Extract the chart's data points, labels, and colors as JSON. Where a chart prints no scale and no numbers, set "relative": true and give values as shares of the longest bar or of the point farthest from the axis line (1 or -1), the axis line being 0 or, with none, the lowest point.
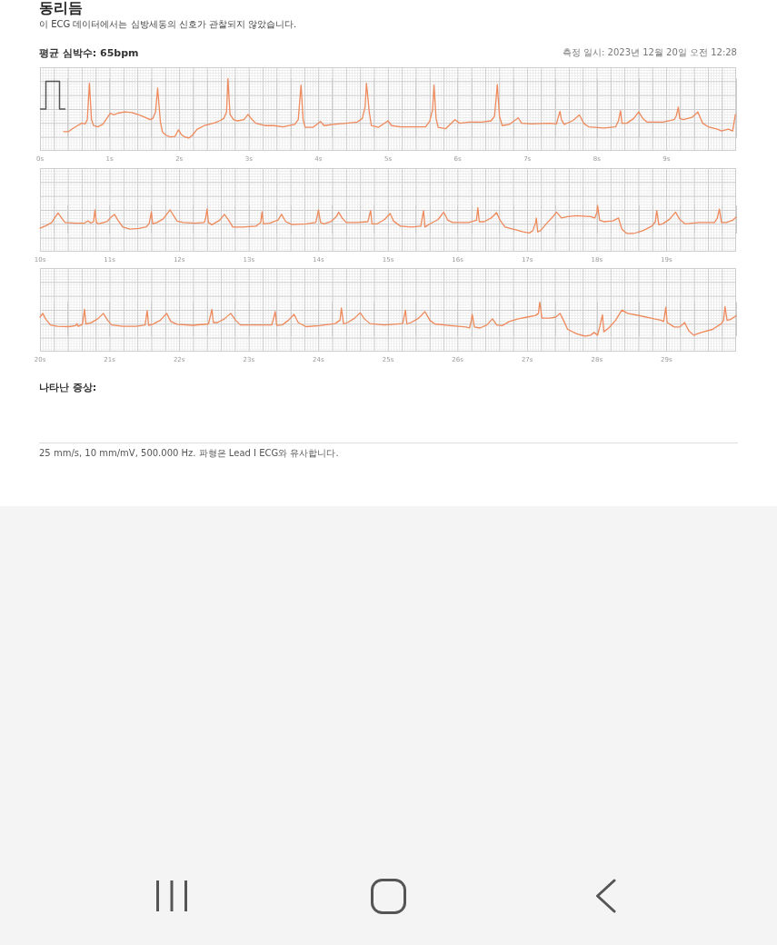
{
  "chart_data": [
    {
      "type": "line",
      "title": "동리듬",
      "subtitle": "이 ECG 데이터에서는 심방세동의 신호가 관찰되지 않았습니다.",
      "annotations": [
        "평균 심박수: 65bpm",
        "측정 일시: 2023년 12월 20일 오전 12:28"
      ],
      "relative": true,
      "color": "#ee8a5c",
      "marker": "none",
      "line_style": "solid",
      "grid": true,
      "xlim": [
        0,
        10
      ],
      "xticks": [
        {
          "value": 0,
          "label": "0s"
        },
        {
          "value": 1,
          "label": "1s"
        },
        {
          "value": 2,
          "label": "2s"
        },
        {
          "value": 3,
          "label": "3s"
        },
        {
          "value": 4,
          "label": "4s"
        },
        {
          "value": 5,
          "label": "5s"
        },
        {
          "value": 6,
          "label": "6s"
        },
        {
          "value": 7,
          "label": "7s"
        },
        {
          "value": 8,
          "label": "8s"
        },
        {
          "value": 9,
          "label": "9s"
        }
      ],
      "x": [
        0.34,
        0.41,
        0.47,
        0.54,
        0.6,
        0.65,
        0.68,
        0.71,
        0.74,
        0.77,
        0.83,
        0.9,
        0.96,
        1.01,
        1.06,
        1.12,
        1.22,
        1.32,
        1.42,
        1.51,
        1.58,
        1.62,
        1.66,
        1.69,
        1.73,
        1.76,
        1.81,
        1.87,
        1.94,
        1.99,
        2.03,
        2.08,
        2.14,
        2.19,
        2.26,
        2.36,
        2.45,
        2.52,
        2.58,
        2.64,
        2.68,
        2.7,
        2.73,
        2.78,
        2.84,
        2.93,
        2.99,
        3.04,
        3.1,
        3.23,
        3.36,
        3.49,
        3.66,
        3.71,
        3.75,
        3.78,
        3.81,
        3.92,
        4.03,
        4.08,
        4.21,
        4.4,
        4.56,
        4.63,
        4.67,
        4.69,
        4.73,
        4.76,
        4.86,
        5,
        5.05,
        5.18,
        5.38,
        5.54,
        5.6,
        5.64,
        5.66,
        5.69,
        5.72,
        5.83,
        5.96,
        6.03,
        6.16,
        6.35,
        6.48,
        6.53,
        6.57,
        6.6,
        6.64,
        6.74,
        6.87,
        6.92,
        7.06,
        7.32,
        7.42,
        7.44,
        7.47,
        7.49,
        7.53,
        7.65,
        7.75,
        7.81,
        7.88,
        8.1,
        8.27,
        8.31,
        8.34,
        8.36,
        8.43,
        8.53,
        8.6,
        8.66,
        8.72,
        8.95,
        9.11,
        9.14,
        9.17,
        9.19,
        9.24,
        9.37,
        9.45,
        9.52,
        9.6,
        9.73,
        9.79,
        9.89,
        9.95,
        9.99
      ],
      "values": [
        0.11,
        0.11,
        0.16,
        0.21,
        0.25,
        0.24,
        0.31,
        0.92,
        0.31,
        0.21,
        0.19,
        0.23,
        0.33,
        0.42,
        0.39,
        0.42,
        0.44,
        0.43,
        0.39,
        0.35,
        0.31,
        0.33,
        0.44,
        0.84,
        0.27,
        0.1,
        0.05,
        0.02,
        0.03,
        0.14,
        0.06,
        0.02,
        0,
        0.05,
        0.15,
        0.21,
        0.24,
        0.26,
        0.29,
        0.33,
        0.44,
        1,
        0.4,
        0.31,
        0.29,
        0.31,
        0.4,
        0.32,
        0.25,
        0.21,
        0.21,
        0.19,
        0.23,
        0.31,
        0.89,
        0.31,
        0.18,
        0.18,
        0.28,
        0.21,
        0.23,
        0.25,
        0.27,
        0.33,
        0.52,
        0.92,
        0.44,
        0.21,
        0.18,
        0.29,
        0.21,
        0.19,
        0.19,
        0.19,
        0.29,
        0.48,
        0.89,
        0.33,
        0.18,
        0.16,
        0.31,
        0.25,
        0.27,
        0.27,
        0.29,
        0.37,
        0.9,
        0.37,
        0.21,
        0.23,
        0.34,
        0.25,
        0.24,
        0.25,
        0.24,
        0.33,
        0.45,
        0.31,
        0.23,
        0.29,
        0.39,
        0.25,
        0.19,
        0.17,
        0.19,
        0.29,
        0.46,
        0.25,
        0.25,
        0.33,
        0.44,
        0.33,
        0.27,
        0.27,
        0.31,
        0.37,
        0.52,
        0.33,
        0.31,
        0.35,
        0.44,
        0.25,
        0.19,
        0.15,
        0.12,
        0.15,
        0.12,
        0.4
      ]
    },
    {
      "type": "line",
      "relative": true,
      "color": "#ee8a5c",
      "marker": "none",
      "line_style": "solid",
      "grid": true,
      "xlim": [
        10,
        20
      ],
      "xticks": [
        {
          "value": 10,
          "label": "10s"
        },
        {
          "value": 11,
          "label": "11s"
        },
        {
          "value": 12,
          "label": "12s"
        },
        {
          "value": 13,
          "label": "13s"
        },
        {
          "value": 14,
          "label": "14s"
        },
        {
          "value": 15,
          "label": "15s"
        },
        {
          "value": 16,
          "label": "16s"
        },
        {
          "value": 17,
          "label": "17s"
        },
        {
          "value": 18,
          "label": "18s"
        },
        {
          "value": 19,
          "label": "19s"
        }
      ],
      "x": [
        10,
        10.08,
        10.17,
        10.21,
        10.26,
        10.31,
        10.36,
        10.51,
        10.64,
        10.69,
        10.73,
        10.77,
        10.79,
        10.81,
        10.84,
        10.96,
        11.03,
        11.07,
        11.12,
        11.19,
        11.29,
        11.42,
        11.53,
        11.57,
        11.6,
        11.62,
        11.68,
        11.77,
        11.87,
        11.92,
        11.97,
        12.06,
        12.23,
        12.36,
        12.38,
        12.4,
        12.42,
        12.47,
        12.58,
        12.65,
        12.71,
        12.77,
        12.91,
        13.1,
        13.17,
        13.19,
        13.21,
        13.3,
        13.42,
        13.47,
        13.53,
        13.62,
        13.82,
        13.96,
        13.98,
        14,
        14.03,
        14.08,
        14.18,
        14.26,
        14.29,
        14.34,
        14.4,
        14.56,
        14.71,
        14.75,
        14.77,
        14.84,
        14.95,
        15.03,
        15.08,
        15.18,
        15.34,
        15.47,
        15.51,
        15.53,
        15.6,
        15.72,
        15.8,
        15.86,
        15.93,
        16.16,
        16.27,
        16.29,
        16.31,
        16.38,
        16.48,
        16.56,
        16.61,
        16.68,
        16.81,
        16.94,
        17.03,
        17.08,
        17.12,
        17.13,
        17.15,
        17.19,
        17.29,
        17.38,
        17.42,
        17.49,
        17.58,
        17.71,
        17.91,
        17.97,
        18,
        18.01,
        18.04,
        18.1,
        18.23,
        18.31,
        18.36,
        18.43,
        18.53,
        18.66,
        18.79,
        18.84,
        18.86,
        18.89,
        18.95,
        19.05,
        19.13,
        19.19,
        19.27,
        19.47,
        19.69,
        19.73,
        19.76,
        19.79,
        19.86,
        19.95,
        20
      ],
      "values": [
        0.19,
        0.27,
        0.39,
        0.55,
        0.73,
        0.55,
        0.39,
        0.37,
        0.37,
        0.45,
        0.37,
        0.42,
        0.84,
        0.39,
        0.34,
        0.42,
        0.6,
        0.68,
        0.47,
        0.23,
        0.16,
        0.18,
        0.24,
        0.37,
        0.77,
        0.34,
        0.39,
        0.52,
        0.84,
        0.63,
        0.44,
        0.39,
        0.37,
        0.39,
        0.55,
        0.87,
        0.39,
        0.31,
        0.47,
        0.68,
        0.47,
        0.23,
        0.23,
        0.26,
        0.39,
        0.77,
        0.34,
        0.37,
        0.48,
        0.68,
        0.42,
        0.32,
        0.34,
        0.39,
        0.58,
        0.84,
        0.39,
        0.34,
        0.42,
        0.61,
        0.76,
        0.55,
        0.39,
        0.39,
        0.42,
        0.82,
        0.34,
        0.34,
        0.5,
        0.71,
        0.44,
        0.26,
        0.23,
        0.26,
        0.81,
        0.23,
        0.34,
        0.5,
        0.76,
        0.47,
        0.39,
        0.39,
        0.47,
        0.92,
        0.42,
        0.42,
        0.55,
        0.74,
        0.47,
        0.23,
        0.15,
        0.06,
        0.02,
        0.1,
        0.39,
        0.55,
        0.06,
        0.1,
        0.39,
        0.63,
        0.76,
        0.55,
        0.6,
        0.63,
        0.6,
        0.55,
        0.74,
        1,
        0.47,
        0.42,
        0.45,
        0.55,
        0.15,
        0,
        0,
        0.1,
        0.26,
        0.42,
        0.82,
        0.31,
        0.35,
        0.52,
        0.76,
        0.5,
        0.34,
        0.39,
        0.39,
        0.55,
        0.87,
        0.39,
        0.39,
        0.47,
        0.58
      ]
    },
    {
      "type": "line",
      "annotations": [
        "나타난 증상:",
        "25 mm/s, 10 mm/mV, 500.000 Hz. 파형은 Lead I ECG와 유사합니다."
      ],
      "relative": true,
      "color": "#ee8a5c",
      "marker": "none",
      "line_style": "solid",
      "grid": true,
      "xlim": [
        20,
        30
      ],
      "xticks": [
        {
          "value": 20,
          "label": "20s"
        },
        {
          "value": 21,
          "label": "21s"
        },
        {
          "value": 22,
          "label": "22s"
        },
        {
          "value": 23,
          "label": "23s"
        },
        {
          "value": 24,
          "label": "24s"
        },
        {
          "value": 25,
          "label": "25s"
        },
        {
          "value": 26,
          "label": "26s"
        },
        {
          "value": 27,
          "label": "27s"
        },
        {
          "value": 28,
          "label": "28s"
        },
        {
          "value": 29,
          "label": "29s"
        }
      ],
      "x": [
        20,
        20.04,
        20.08,
        20.15,
        20.25,
        20.41,
        20.51,
        20.53,
        20.55,
        20.61,
        20.64,
        20.66,
        20.73,
        20.83,
        20.91,
        20.97,
        21.03,
        21.19,
        21.38,
        21.51,
        21.54,
        21.56,
        21.62,
        21.73,
        21.82,
        21.88,
        21.97,
        22.19,
        22.42,
        22.47,
        22.49,
        22.55,
        22.65,
        22.74,
        22.81,
        22.88,
        23.1,
        23.33,
        23.38,
        23.4,
        23.48,
        23.57,
        23.65,
        23.71,
        23.82,
        24.01,
        24.24,
        24.31,
        24.33,
        24.36,
        24.42,
        24.52,
        24.6,
        24.66,
        24.74,
        24.95,
        25.21,
        25.25,
        25.27,
        25.33,
        25.44,
        25.53,
        25.6,
        25.67,
        25.9,
        26.12,
        26.17,
        26.19,
        26.21,
        26.24,
        26.32,
        26.42,
        26.5,
        26.56,
        26.64,
        26.74,
        26.87,
        27,
        27.12,
        27.16,
        27.18,
        27.21,
        27.32,
        27.41,
        27.47,
        27.52,
        27.58,
        27.71,
        27.83,
        27.91,
        27.96,
        28.01,
        28.04,
        28.08,
        28.1,
        28.17,
        28.27,
        28.36,
        28.44,
        28.62,
        28.82,
        28.92,
        28.96,
        28.99,
        29.01,
        29.11,
        29.19,
        29.26,
        29.32,
        29.39,
        29.5,
        29.66,
        29.79,
        29.82,
        29.84,
        29.87,
        29.92,
        30
      ],
      "values": [
        0.56,
        0.67,
        0.51,
        0.33,
        0.29,
        0.28,
        0.31,
        0.37,
        0.29,
        0.35,
        0.79,
        0.36,
        0.39,
        0.51,
        0.67,
        0.47,
        0.33,
        0.29,
        0.29,
        0.33,
        0.75,
        0.32,
        0.35,
        0.47,
        0.67,
        0.43,
        0.35,
        0.32,
        0.36,
        0.79,
        0.4,
        0.4,
        0.51,
        0.67,
        0.47,
        0.33,
        0.33,
        0.33,
        0.72,
        0.32,
        0.33,
        0.47,
        0.64,
        0.4,
        0.28,
        0.31,
        0.37,
        0.47,
        0.83,
        0.36,
        0.4,
        0.53,
        0.69,
        0.51,
        0.37,
        0.33,
        0.37,
        0.76,
        0.36,
        0.4,
        0.53,
        0.72,
        0.47,
        0.36,
        0.31,
        0.27,
        0.24,
        0.4,
        0.64,
        0.27,
        0.24,
        0.33,
        0.51,
        0.33,
        0.31,
        0.43,
        0.51,
        0.56,
        0.61,
        0.67,
        1,
        0.53,
        0.53,
        0.56,
        0.67,
        0.47,
        0.2,
        0.07,
        0,
        0.03,
        0.11,
        0.03,
        0.27,
        0.63,
        0.13,
        0.24,
        0.47,
        0.77,
        0.67,
        0.6,
        0.51,
        0.47,
        0.43,
        0.85,
        0.4,
        0.27,
        0.27,
        0.4,
        0.16,
        0.03,
        0.11,
        0.2,
        0.37,
        0.47,
        0.87,
        0.47,
        0.49,
        0.6
      ]
    }
  ]
}
